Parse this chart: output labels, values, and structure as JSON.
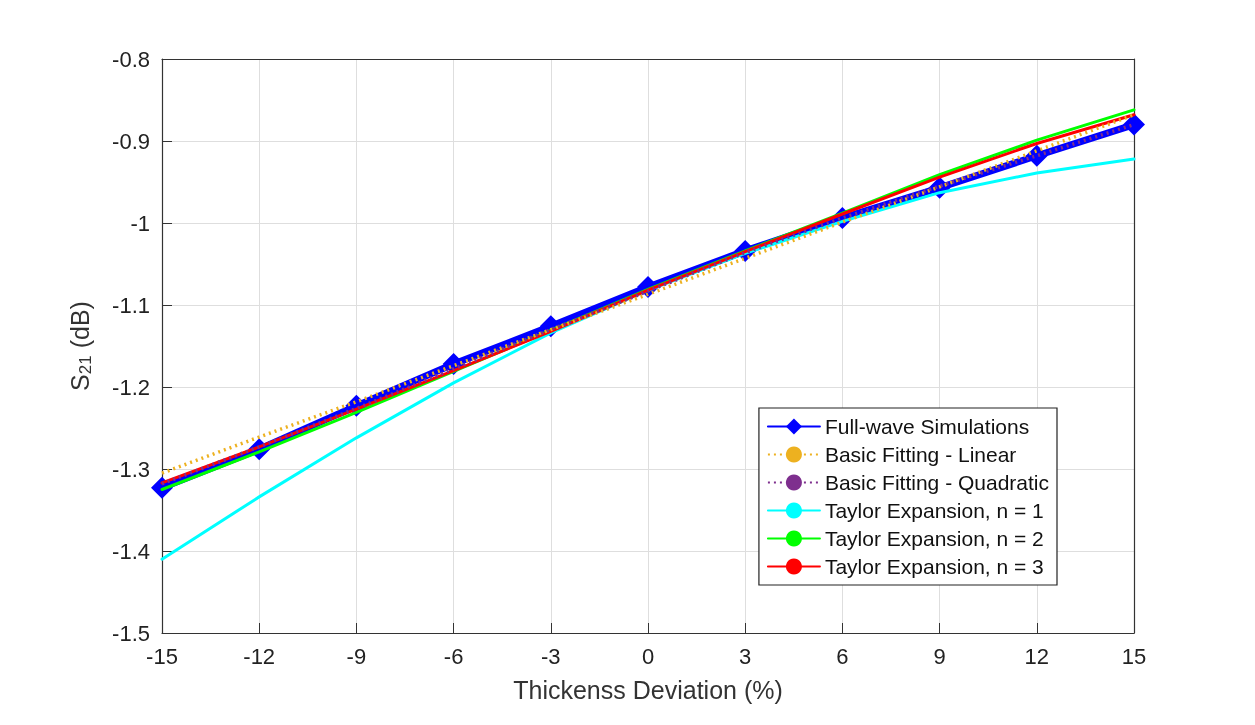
{
  "chart_data": {
    "type": "line",
    "xlabel": "Thickenss Deviation (%)",
    "ylabel": "S$_{21}$ (dB)",
    "x": [
      -15,
      -12,
      -9,
      -6,
      -3,
      0,
      3,
      6,
      9,
      12,
      15
    ],
    "series": [
      {
        "name": "Full-wave Simulations",
        "color": "#0000ff",
        "marker": "diamond",
        "line_style": "solid",
        "values": [
          -1.323,
          -1.276,
          -1.223,
          -1.172,
          -1.126,
          -1.078,
          -1.034,
          -0.994,
          -0.957,
          -0.918,
          -0.88
        ]
      },
      {
        "name": "Basic Fitting - Linear",
        "color": "#edb120",
        "line_style": "dotted",
        "values": [
          -1.305,
          -1.261,
          -1.218,
          -1.174,
          -1.13,
          -1.087,
          -1.043,
          -0.999,
          -0.956,
          -0.912,
          -0.868
        ]
      },
      {
        "name": "Basic Fitting - Quadratic",
        "color": "#7e2f8e",
        "line_style": "dotted",
        "values": [
          -1.318,
          -1.273,
          -1.226,
          -1.178,
          -1.13,
          -1.083,
          -1.036,
          -0.994,
          -0.955,
          -0.918,
          -0.88
        ]
      },
      {
        "name": "Taylor Expansion, n = 1",
        "color": "#00ffff",
        "line_style": "solid",
        "values": [
          -1.41,
          -1.334,
          -1.262,
          -1.195,
          -1.134,
          -1.082,
          -1.037,
          -0.998,
          -0.963,
          -0.939,
          -0.922
        ]
      },
      {
        "name": "Taylor Expansion, n = 2",
        "color": "#00ff00",
        "line_style": "solid",
        "values": [
          -1.325,
          -1.279,
          -1.231,
          -1.181,
          -1.131,
          -1.081,
          -1.034,
          -0.988,
          -0.941,
          -0.899,
          -0.862
        ]
      },
      {
        "name": "Taylor Expansion, n = 3",
        "color": "#ff0000",
        "line_style": "solid",
        "values": [
          -1.317,
          -1.273,
          -1.227,
          -1.18,
          -1.132,
          -1.082,
          -1.035,
          -0.989,
          -0.944,
          -0.903,
          -0.868
        ]
      }
    ],
    "xlim": [
      -15,
      15
    ],
    "xticks": [
      -15,
      -12,
      -9,
      -6,
      -3,
      0,
      3,
      6,
      9,
      12,
      15
    ],
    "ylim": [
      -1.5,
      -0.8
    ],
    "yticks": [
      -1.5,
      -1.4,
      -1.3,
      -1.2,
      -1.1,
      -1,
      -0.9,
      -0.8
    ],
    "grid": true,
    "legend": "bottom right"
  }
}
